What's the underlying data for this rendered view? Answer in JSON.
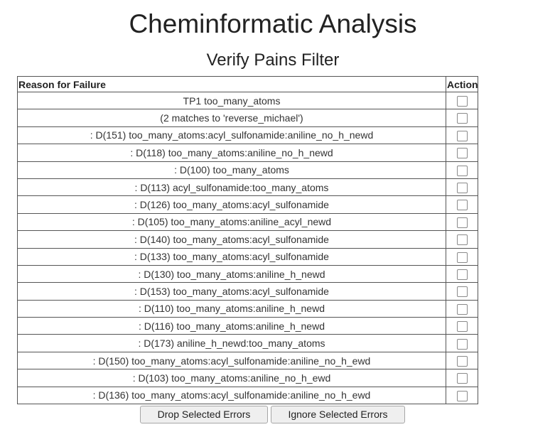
{
  "page": {
    "title": "Cheminformatic Analysis",
    "subtitle": "Verify Pains Filter"
  },
  "table": {
    "headers": {
      "reason": "Reason for Failure",
      "action": "Action"
    },
    "rows": [
      {
        "reason": "TP1 too_many_atoms",
        "checked": false
      },
      {
        "reason": "(2 matches to 'reverse_michael')",
        "checked": false
      },
      {
        "reason": ": D(151) too_many_atoms:acyl_sulfonamide:aniline_no_h_newd",
        "checked": false
      },
      {
        "reason": ": D(118) too_many_atoms:aniline_no_h_newd",
        "checked": false
      },
      {
        "reason": ": D(100) too_many_atoms",
        "checked": false
      },
      {
        "reason": ": D(113) acyl_sulfonamide:too_many_atoms",
        "checked": false
      },
      {
        "reason": ": D(126) too_many_atoms:acyl_sulfonamide",
        "checked": false
      },
      {
        "reason": ": D(105) too_many_atoms:aniline_acyl_newd",
        "checked": false
      },
      {
        "reason": ": D(140) too_many_atoms:acyl_sulfonamide",
        "checked": false
      },
      {
        "reason": ": D(133) too_many_atoms:acyl_sulfonamide",
        "checked": false
      },
      {
        "reason": ": D(130) too_many_atoms:aniline_h_newd",
        "checked": false
      },
      {
        "reason": ": D(153) too_many_atoms:acyl_sulfonamide",
        "checked": false
      },
      {
        "reason": ": D(110) too_many_atoms:aniline_h_newd",
        "checked": false
      },
      {
        "reason": ": D(116) too_many_atoms:aniline_h_newd",
        "checked": false
      },
      {
        "reason": ": D(173) aniline_h_newd:too_many_atoms",
        "checked": false
      },
      {
        "reason": ": D(150) too_many_atoms:acyl_sulfonamide:aniline_no_h_ewd",
        "checked": false
      },
      {
        "reason": ": D(103) too_many_atoms:aniline_no_h_ewd",
        "checked": false
      },
      {
        "reason": ": D(136) too_many_atoms:acyl_sulfonamide:aniline_no_h_ewd",
        "checked": false
      }
    ]
  },
  "buttons": {
    "drop": "Drop Selected Errors",
    "ignore": "Ignore Selected Errors"
  }
}
